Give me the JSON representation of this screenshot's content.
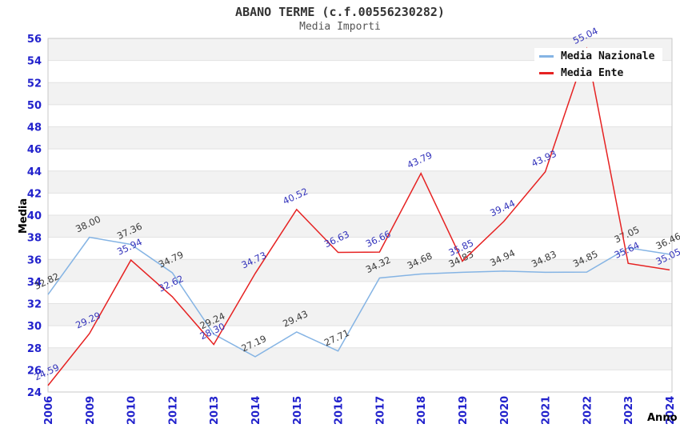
{
  "header": {
    "title": "ABANO TERME (c.f.00556230282)",
    "subtitle": "Media Importi"
  },
  "axes": {
    "tick_label_color": "#2222CC",
    "band_gray": "#f2f2f2",
    "border_color": "#c8c8c8"
  },
  "chart_data": {
    "type": "line",
    "title": "ABANO TERME (c.f.00556230282)",
    "subtitle": "Media Importi",
    "xlabel": "Anno",
    "ylabel": "Media",
    "x": [
      "2006",
      "2009",
      "2010",
      "2012",
      "2013",
      "2014",
      "2015",
      "2016",
      "2017",
      "2018",
      "2019",
      "2020",
      "2021",
      "2022",
      "2023",
      "2024"
    ],
    "series": [
      {
        "name": "Media Nazionale",
        "color": "#85B4E4",
        "label_color": "#3A3A3A",
        "values": [
          32.82,
          38.0,
          37.36,
          34.79,
          29.24,
          27.19,
          29.43,
          27.71,
          34.32,
          34.68,
          34.83,
          34.94,
          34.83,
          34.85,
          37.05,
          36.46
        ]
      },
      {
        "name": "Media Ente",
        "color": "#E62222",
        "label_color": "#3333BB",
        "values": [
          24.59,
          29.29,
          35.94,
          32.62,
          28.3,
          34.73,
          40.52,
          36.63,
          36.66,
          43.79,
          35.85,
          39.44,
          43.93,
          55.04,
          35.64,
          35.05
        ]
      }
    ],
    "ylim": [
      24,
      56
    ],
    "ytick_step": 2,
    "grid": "horizontal-bands-alternating",
    "legend_position": "top-right"
  }
}
